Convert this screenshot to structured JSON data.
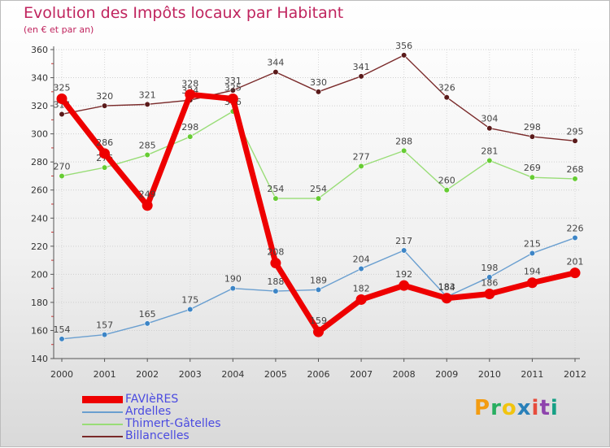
{
  "chart_data": {
    "type": "line",
    "title": "Evolution des Impôts locaux par Habitant",
    "subtitle": "(en € et par an)",
    "xlabel": "",
    "ylabel": "",
    "ylim": [
      140,
      360
    ],
    "yticks": [
      140,
      160,
      180,
      200,
      220,
      240,
      260,
      280,
      300,
      320,
      340,
      360
    ],
    "grid": true,
    "legend_position": "bottom-left",
    "categories": [
      "2000",
      "2001",
      "2002",
      "2003",
      "2004",
      "2005",
      "2006",
      "2007",
      "2008",
      "2009",
      "2010",
      "2011",
      "2012"
    ],
    "series": [
      {
        "name": "Billancelles",
        "color": "#7a2a2a",
        "marker": "#5a1a1a",
        "values": [
          314,
          320,
          321,
          324,
          331,
          344,
          330,
          341,
          356,
          326,
          304,
          298,
          295
        ]
      },
      {
        "name": "Thimert-Gâtelles",
        "color": "#99dd77",
        "marker": "#66cc33",
        "values": [
          270,
          276,
          285,
          298,
          316,
          254,
          254,
          277,
          288,
          260,
          281,
          269,
          268
        ]
      },
      {
        "name": "Ardelles",
        "color": "#6a9fd0",
        "marker": "#3d85c6",
        "values": [
          154,
          157,
          165,
          175,
          190,
          188,
          189,
          204,
          217,
          184,
          198,
          215,
          226
        ]
      },
      {
        "name": "FAVIèRES",
        "color": "#ee0000",
        "marker": "#ee0000",
        "values": [
          325,
          286,
          249,
          328,
          325,
          208,
          159,
          182,
          192,
          183,
          186,
          194,
          201
        ]
      }
    ]
  },
  "legend": [
    "FAVIèRES",
    "Ardelles",
    "Thimert-Gâtelles",
    "Billancelles"
  ],
  "logo": {
    "letters": [
      "P",
      "r",
      "o",
      "x",
      "i",
      "t",
      "i"
    ],
    "colors": [
      "#f39c12",
      "#27ae60",
      "#f1c40f",
      "#2980b9",
      "#e74c3c",
      "#8e44ad",
      "#16a085"
    ]
  }
}
